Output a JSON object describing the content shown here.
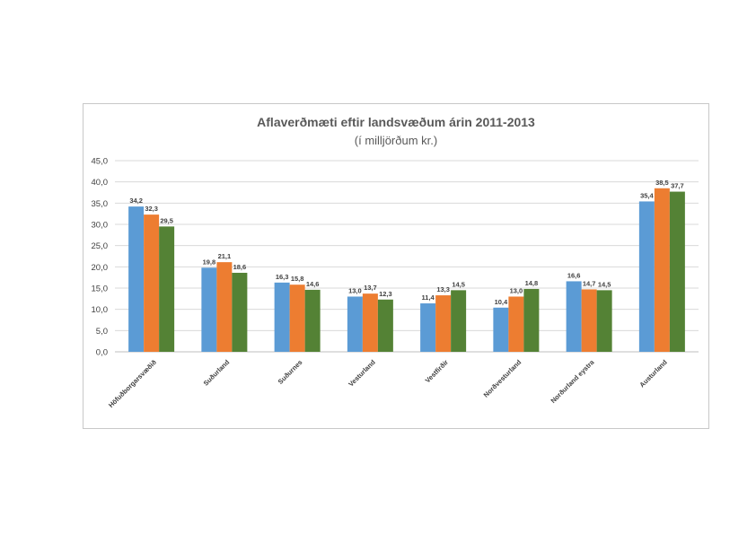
{
  "chart_data": {
    "type": "bar",
    "title": "Aflaverðmæti eftir landsvæðum árin 2011-2013",
    "subtitle": "(í milljörðum kr.)",
    "categories": [
      "Höfuðborgarsvæðið",
      "Suðurland",
      "Suðurnes",
      "Vesturland",
      "Vestfirðir",
      "Norðvesturland",
      "Norðurland eystra",
      "Austurland"
    ],
    "series": [
      {
        "color": "#5b9bd5",
        "values": [
          34.2,
          19.8,
          16.3,
          13.0,
          11.4,
          10.4,
          16.6,
          35.4
        ]
      },
      {
        "color": "#ed7d31",
        "values": [
          32.3,
          21.1,
          15.8,
          13.7,
          13.3,
          13.0,
          14.7,
          38.5
        ]
      },
      {
        "color": "#548235",
        "values": [
          29.5,
          18.6,
          14.6,
          12.3,
          14.5,
          14.8,
          14.5,
          37.7
        ]
      }
    ],
    "ylim": [
      0,
      45
    ],
    "yticks": [
      "0,0",
      "5,0",
      "10,0",
      "15,0",
      "20,0",
      "25,0",
      "30,0",
      "35,0",
      "40,0",
      "45,0"
    ],
    "grid": true,
    "legend": "none"
  }
}
